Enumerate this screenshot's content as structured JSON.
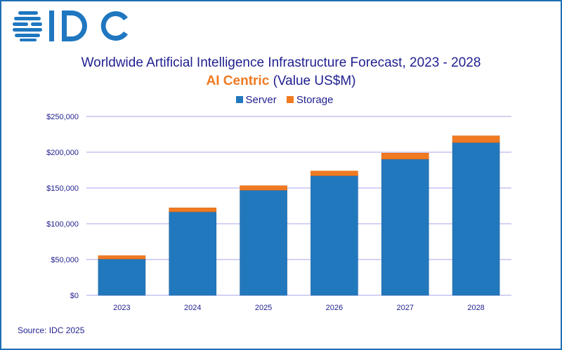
{
  "brand": {
    "logo_text": "IDC",
    "color": "#1f77c0"
  },
  "chart_data": {
    "type": "bar",
    "stacked": true,
    "title": "Worldwide Artificial Intelligence Infrastructure Forecast, 2023 - 2028",
    "subtitle_highlight": "AI Centric",
    "subtitle_rest": "(Value US$M)",
    "categories": [
      "2023",
      "2024",
      "2025",
      "2026",
      "2027",
      "2028"
    ],
    "series": [
      {
        "name": "Server",
        "color": "#2278bd",
        "values": [
          50800,
          116700,
          147000,
          167200,
          190400,
          213500
        ]
      },
      {
        "name": "Storage",
        "color": "#f07a22",
        "values": [
          4600,
          5500,
          6200,
          6500,
          8400,
          9400
        ]
      }
    ],
    "ylim": [
      0,
      250000
    ],
    "yticks": [
      0,
      50000,
      100000,
      150000,
      200000,
      250000
    ],
    "ytick_labels": [
      "$0",
      "$50,000",
      "$100,000",
      "$150,000",
      "$200,000",
      "$250,000"
    ],
    "grid": true,
    "legend_position": "top-center"
  },
  "source": "Source: IDC 2025"
}
